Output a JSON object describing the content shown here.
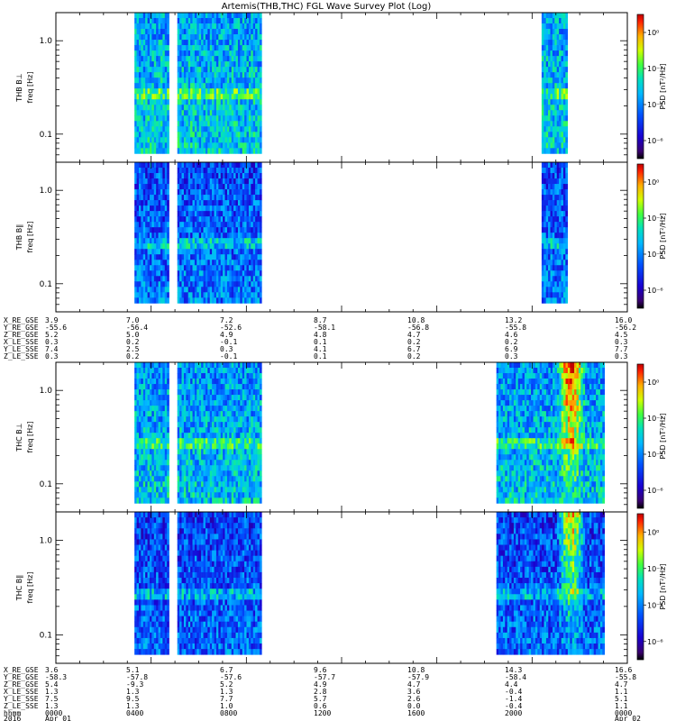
{
  "chart_data": {
    "type": "heatmap",
    "title": "Artemis(THB,THC) FGL Wave Survey Plot (Log)",
    "time_range_hours": [
      0,
      24
    ],
    "freq_range_hz": [
      0.05,
      2.0
    ],
    "freq_scale": "log",
    "freq_ticks": [
      "1.0",
      "0.1"
    ],
    "colorbar": {
      "label": "PSD [nT²/Hz]",
      "scale": "log",
      "range": [
        1e-07,
        10
      ],
      "ticks": [
        "10⁰",
        "10⁻²",
        "10⁻⁴",
        "10⁻⁶"
      ]
    },
    "panels": [
      {
        "group": "THB",
        "ylabel": "THB B⊥",
        "ylabel2": "freq [Hz]",
        "segments": [
          [
            3.3,
            4.7
          ],
          [
            5.1,
            8.6
          ],
          [
            20.4,
            21.4
          ]
        ],
        "base": 0.42
      },
      {
        "group": "THB",
        "ylabel": "THB B∥",
        "ylabel2": "freq [Hz]",
        "segments": [
          [
            3.3,
            4.7
          ],
          [
            5.1,
            8.6
          ],
          [
            20.4,
            21.4
          ]
        ],
        "base": 0.28
      },
      {
        "group": "THC",
        "ylabel": "THC B⊥",
        "ylabel2": "freq [Hz]",
        "segments": [
          [
            3.3,
            4.7
          ],
          [
            5.1,
            8.6
          ],
          [
            18.5,
            23.0
          ]
        ],
        "base": 0.4,
        "hot": [
          21.0,
          22.2
        ]
      },
      {
        "group": "THC",
        "ylabel": "THC B∥",
        "ylabel2": "freq [Hz]",
        "segments": [
          [
            3.3,
            4.7
          ],
          [
            5.1,
            8.6
          ],
          [
            18.5,
            23.0
          ]
        ],
        "base": 0.26,
        "hot": [
          21.0,
          22.2
        ]
      }
    ],
    "ephem_thb": {
      "rows": [
        [
          "X_RE_GSE",
          "3.9",
          "7.0",
          "7.2",
          "8.7",
          "10.8",
          "13.2",
          "16.0"
        ],
        [
          "Y_RE_GSE",
          "-55.6",
          "-56.4",
          "-52.6",
          "-58.1",
          "-56.8",
          "-55.8",
          "-56.2"
        ],
        [
          "Z_RE_GSE",
          "5.2",
          "5.0",
          "4.9",
          "4.8",
          "4.7",
          "4.6",
          "4.5"
        ],
        [
          "X_LE_SSE",
          "0.3",
          "0.2",
          "-0.1",
          "0.1",
          "0.2",
          "0.2",
          "0.3"
        ],
        [
          "Y_LE_SSE",
          "7.4",
          "2.5",
          "0.3",
          "4.1",
          "6.7",
          "6.9",
          "7.7"
        ],
        [
          "Z_LE_SSE",
          "0.3",
          "0.2",
          "-0.1",
          "0.1",
          "0.2",
          "0.3",
          "0.3"
        ]
      ]
    },
    "ephem_thc": {
      "rows": [
        [
          "X_RE_GSE",
          "3.6",
          "5.1",
          "6.7",
          "9.6",
          "10.8",
          "14.3",
          "16.6"
        ],
        [
          "Y_RE_GSE",
          "-58.3",
          "-57.8",
          "-57.6",
          "-57.7",
          "-57.9",
          "-58.4",
          "-55.8"
        ],
        [
          "Z_RE_GSE",
          "5.4",
          "-9.3",
          "5.2",
          "4.9",
          "4.7",
          "4.4",
          "4.7"
        ],
        [
          "X_LE_SSE",
          "1.3",
          "1.3",
          "1.3",
          "2.8",
          "3.6",
          "-0.4",
          "1.1"
        ],
        [
          "Y_LE_SSE",
          "7.5",
          "9.5",
          "7.7",
          "5.7",
          "2.6",
          "-1.4",
          "5.1"
        ],
        [
          "Z_LE_SSE",
          "1.3",
          "1.3",
          "1.0",
          "0.6",
          "0.0",
          "-0.4",
          "1.1"
        ]
      ],
      "time_row": [
        "hhmm",
        "0000",
        "0400",
        "0800",
        "1200",
        "1600",
        "2000",
        "0000"
      ],
      "date_row": [
        "2016",
        "Apr 01",
        "Apr 02"
      ]
    }
  }
}
